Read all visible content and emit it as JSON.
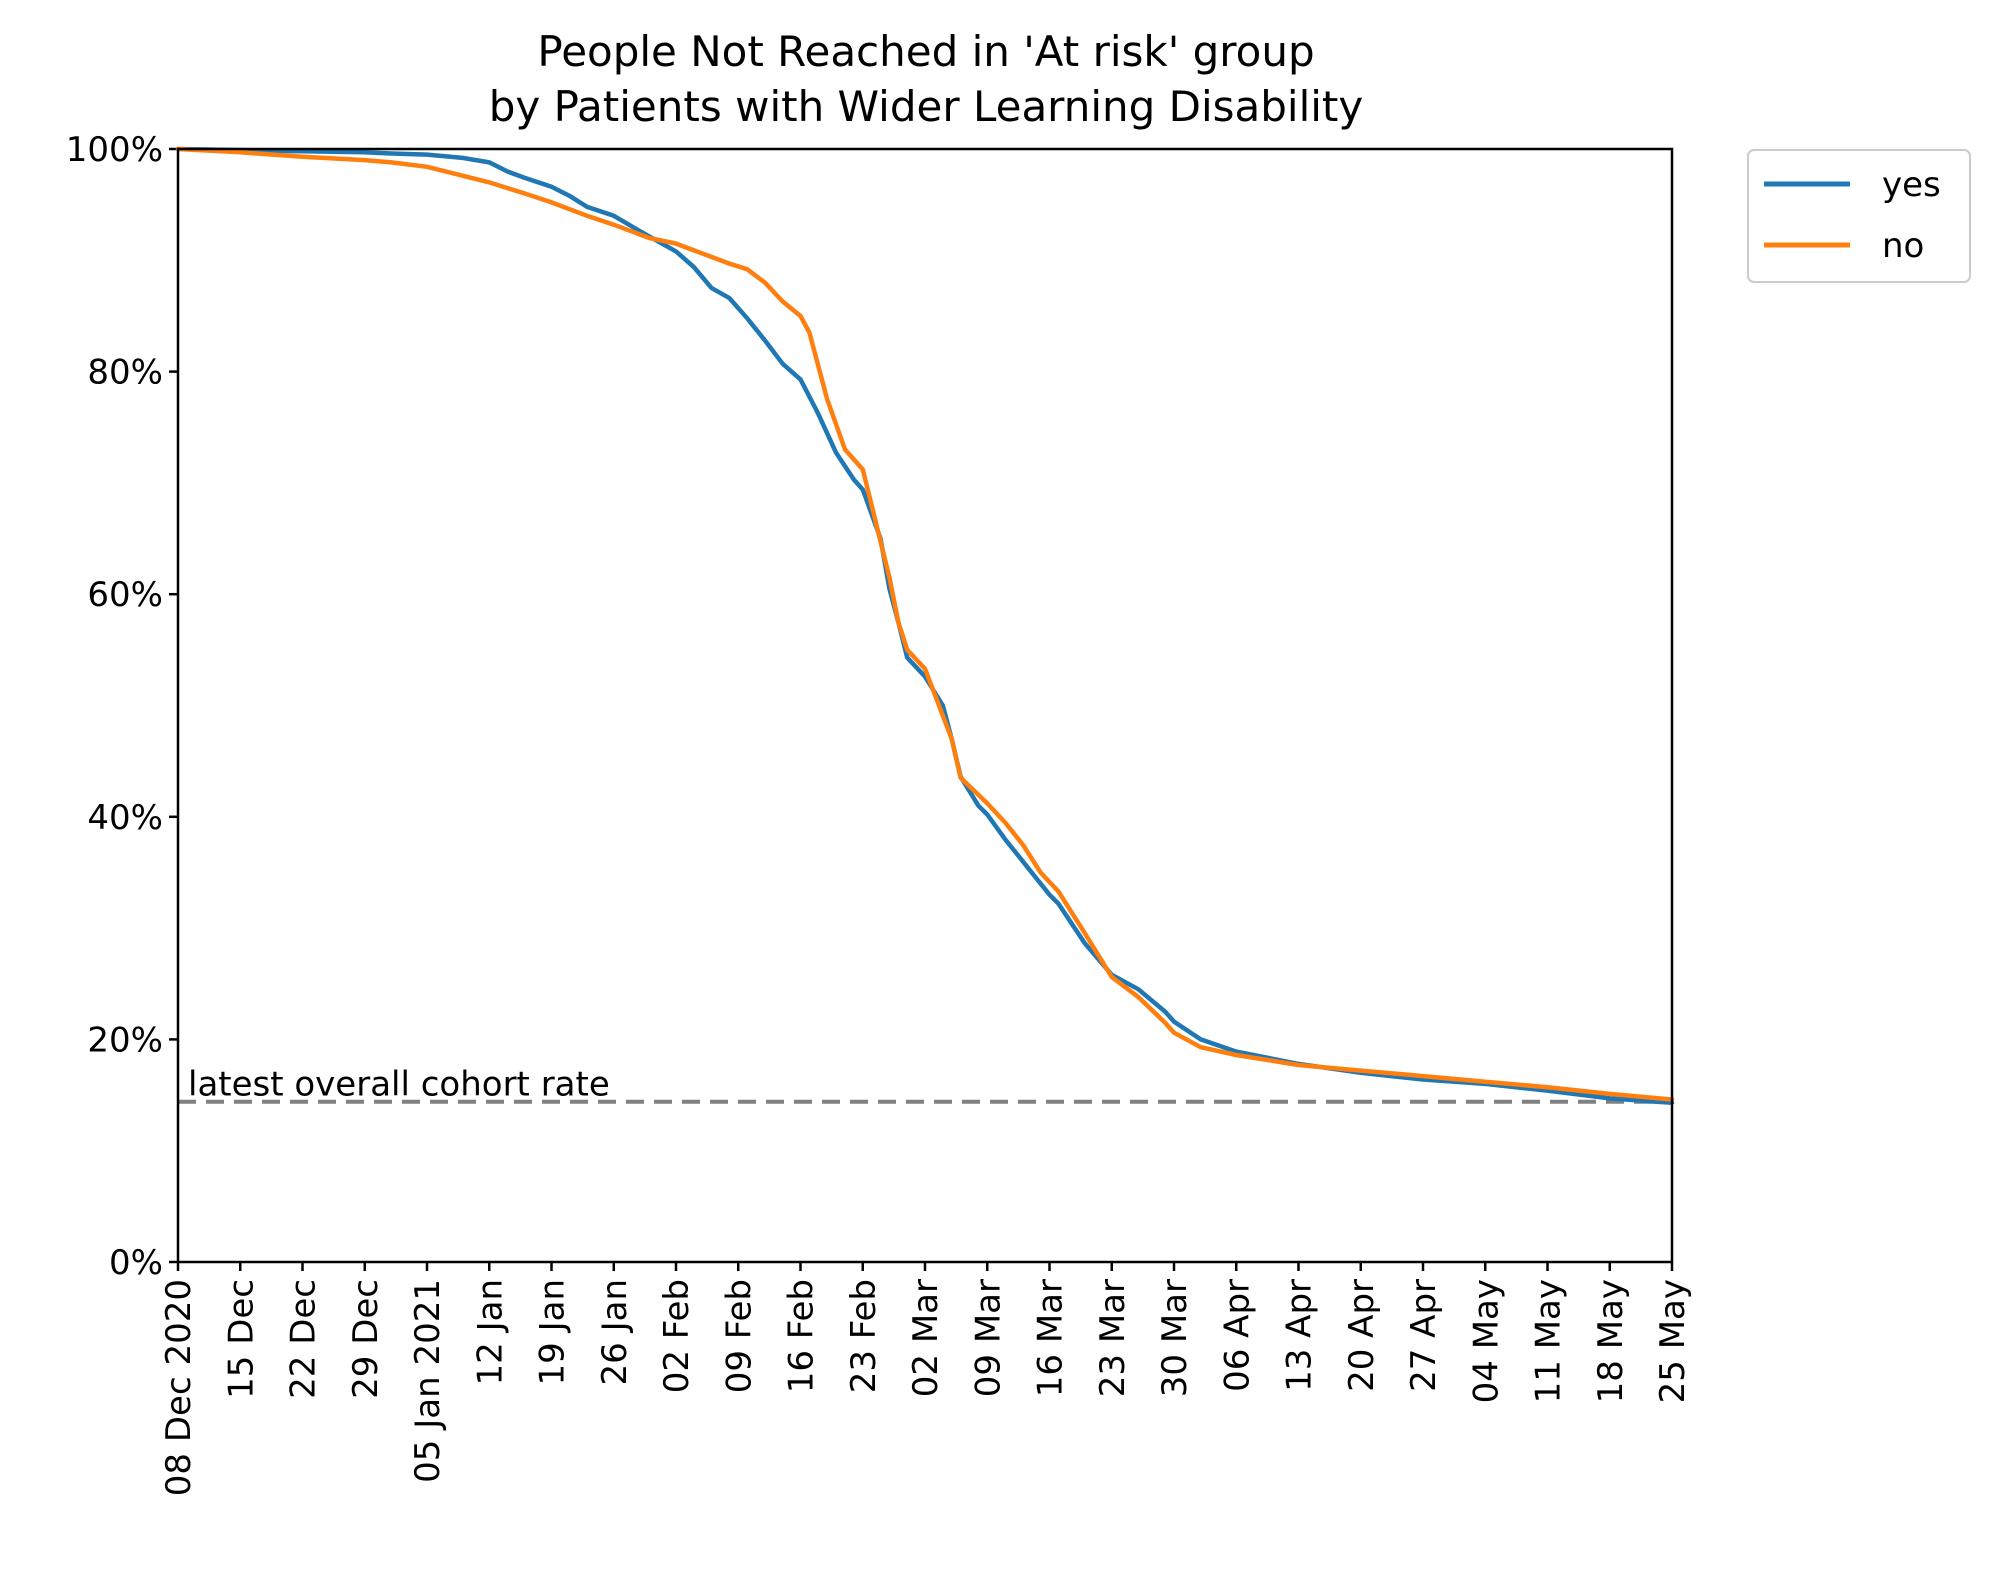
{
  "chart_data": {
    "type": "line",
    "title": [
      "People Not Reached in 'At risk' group",
      "by Patients with Wider Learning Disability"
    ],
    "xlabel": "",
    "ylabel": "",
    "ylim": [
      0,
      100
    ],
    "yticks": [
      0,
      20,
      40,
      60,
      80,
      100
    ],
    "ytick_labels": [
      "0%",
      "20%",
      "40%",
      "60%",
      "80%",
      "100%"
    ],
    "xlim": [
      "2020-12-08",
      "2021-05-25"
    ],
    "xticks": [
      "2020-12-08",
      "2020-12-15",
      "2020-12-22",
      "2020-12-29",
      "2021-01-05",
      "2021-01-12",
      "2021-01-19",
      "2021-01-26",
      "2021-02-02",
      "2021-02-09",
      "2021-02-16",
      "2021-02-23",
      "2021-03-02",
      "2021-03-09",
      "2021-03-16",
      "2021-03-23",
      "2021-03-30",
      "2021-04-06",
      "2021-04-13",
      "2021-04-20",
      "2021-04-27",
      "2021-05-04",
      "2021-05-11",
      "2021-05-18",
      "2021-05-25"
    ],
    "xtick_labels": [
      "08 Dec 2020",
      "15 Dec",
      "22 Dec",
      "29 Dec",
      "05 Jan 2021",
      "12 Jan",
      "19 Jan",
      "26 Jan",
      "02 Feb",
      "09 Feb",
      "16 Feb",
      "23 Feb",
      "02 Mar",
      "09 Mar",
      "16 Mar",
      "23 Mar",
      "30 Mar",
      "06 Apr",
      "13 Apr",
      "20 Apr",
      "27 Apr",
      "04 May",
      "11 May",
      "18 May",
      "25 May"
    ],
    "legend_position": "outside-top-right",
    "grid": false,
    "series": [
      {
        "name": "yes",
        "color": "#1f77b4",
        "points": [
          [
            "2020-12-08",
            100
          ],
          [
            "2020-12-15",
            99.9
          ],
          [
            "2020-12-22",
            99.8
          ],
          [
            "2020-12-29",
            99.7
          ],
          [
            "2021-01-01",
            99.6
          ],
          [
            "2021-01-05",
            99.5
          ],
          [
            "2021-01-09",
            99.2
          ],
          [
            "2021-01-12",
            98.8
          ],
          [
            "2021-01-14",
            98.0
          ],
          [
            "2021-01-16",
            97.4
          ],
          [
            "2021-01-19",
            96.6
          ],
          [
            "2021-01-21",
            95.8
          ],
          [
            "2021-01-23",
            94.8
          ],
          [
            "2021-01-26",
            94.0
          ],
          [
            "2021-01-29",
            92.6
          ],
          [
            "2021-02-02",
            90.8
          ],
          [
            "2021-02-04",
            89.4
          ],
          [
            "2021-02-06",
            87.5
          ],
          [
            "2021-02-08",
            86.6
          ],
          [
            "2021-02-10",
            84.8
          ],
          [
            "2021-02-12",
            82.8
          ],
          [
            "2021-02-14",
            80.7
          ],
          [
            "2021-02-16",
            79.3
          ],
          [
            "2021-02-18",
            76.2
          ],
          [
            "2021-02-20",
            72.7
          ],
          [
            "2021-02-22",
            70.3
          ],
          [
            "2021-02-23",
            69.4
          ],
          [
            "2021-02-25",
            65.0
          ],
          [
            "2021-02-26",
            60.5
          ],
          [
            "2021-02-27",
            57.5
          ],
          [
            "2021-02-28",
            54.3
          ],
          [
            "2021-03-02",
            52.6
          ],
          [
            "2021-03-04",
            50.0
          ],
          [
            "2021-03-05",
            47.0
          ],
          [
            "2021-03-06",
            43.6
          ],
          [
            "2021-03-08",
            41.0
          ],
          [
            "2021-03-09",
            40.2
          ],
          [
            "2021-03-11",
            38.0
          ],
          [
            "2021-03-13",
            36.0
          ],
          [
            "2021-03-14",
            35.0
          ],
          [
            "2021-03-16",
            33.0
          ],
          [
            "2021-03-17",
            32.2
          ],
          [
            "2021-03-20",
            28.6
          ],
          [
            "2021-03-23",
            25.8
          ],
          [
            "2021-03-26",
            24.5
          ],
          [
            "2021-03-29",
            22.5
          ],
          [
            "2021-03-30",
            21.6
          ],
          [
            "2021-04-02",
            20.0
          ],
          [
            "2021-04-06",
            18.9
          ],
          [
            "2021-04-13",
            17.8
          ],
          [
            "2021-04-20",
            17.0
          ],
          [
            "2021-04-27",
            16.4
          ],
          [
            "2021-05-04",
            16.0
          ],
          [
            "2021-05-11",
            15.4
          ],
          [
            "2021-05-18",
            14.7
          ],
          [
            "2021-05-25",
            14.3
          ]
        ]
      },
      {
        "name": "no",
        "color": "#ff7f0e",
        "points": [
          [
            "2020-12-08",
            100
          ],
          [
            "2020-12-15",
            99.7
          ],
          [
            "2020-12-22",
            99.3
          ],
          [
            "2020-12-29",
            99.0
          ],
          [
            "2021-01-01",
            98.8
          ],
          [
            "2021-01-05",
            98.4
          ],
          [
            "2021-01-09",
            97.6
          ],
          [
            "2021-01-12",
            97.0
          ],
          [
            "2021-01-16",
            96.0
          ],
          [
            "2021-01-19",
            95.2
          ],
          [
            "2021-01-23",
            94.0
          ],
          [
            "2021-01-26",
            93.2
          ],
          [
            "2021-01-30",
            92.0
          ],
          [
            "2021-02-02",
            91.5
          ],
          [
            "2021-02-05",
            90.6
          ],
          [
            "2021-02-08",
            89.7
          ],
          [
            "2021-02-10",
            89.2
          ],
          [
            "2021-02-12",
            88.0
          ],
          [
            "2021-02-14",
            86.3
          ],
          [
            "2021-02-16",
            85.0
          ],
          [
            "2021-02-17",
            83.5
          ],
          [
            "2021-02-19",
            77.5
          ],
          [
            "2021-02-21",
            73.0
          ],
          [
            "2021-02-23",
            71.2
          ],
          [
            "2021-02-24",
            68.0
          ],
          [
            "2021-02-26",
            61.5
          ],
          [
            "2021-02-27",
            57.5
          ],
          [
            "2021-02-28",
            55.0
          ],
          [
            "2021-03-02",
            53.3
          ],
          [
            "2021-03-03",
            51.2
          ],
          [
            "2021-03-05",
            47.0
          ],
          [
            "2021-03-06",
            43.5
          ],
          [
            "2021-03-09",
            41.2
          ],
          [
            "2021-03-11",
            39.5
          ],
          [
            "2021-03-13",
            37.5
          ],
          [
            "2021-03-15",
            35.0
          ],
          [
            "2021-03-17",
            33.3
          ],
          [
            "2021-03-20",
            29.5
          ],
          [
            "2021-03-23",
            25.6
          ],
          [
            "2021-03-26",
            23.8
          ],
          [
            "2021-03-29",
            21.5
          ],
          [
            "2021-03-30",
            20.6
          ],
          [
            "2021-04-02",
            19.3
          ],
          [
            "2021-04-06",
            18.6
          ],
          [
            "2021-04-13",
            17.7
          ],
          [
            "2021-04-20",
            17.2
          ],
          [
            "2021-04-27",
            16.7
          ],
          [
            "2021-05-04",
            16.2
          ],
          [
            "2021-05-11",
            15.7
          ],
          [
            "2021-05-18",
            15.1
          ],
          [
            "2021-05-25",
            14.6
          ]
        ]
      }
    ],
    "reference_line": {
      "label": "latest overall cohort rate",
      "value": 14.4,
      "color": "#808080",
      "style": "dashed"
    }
  }
}
